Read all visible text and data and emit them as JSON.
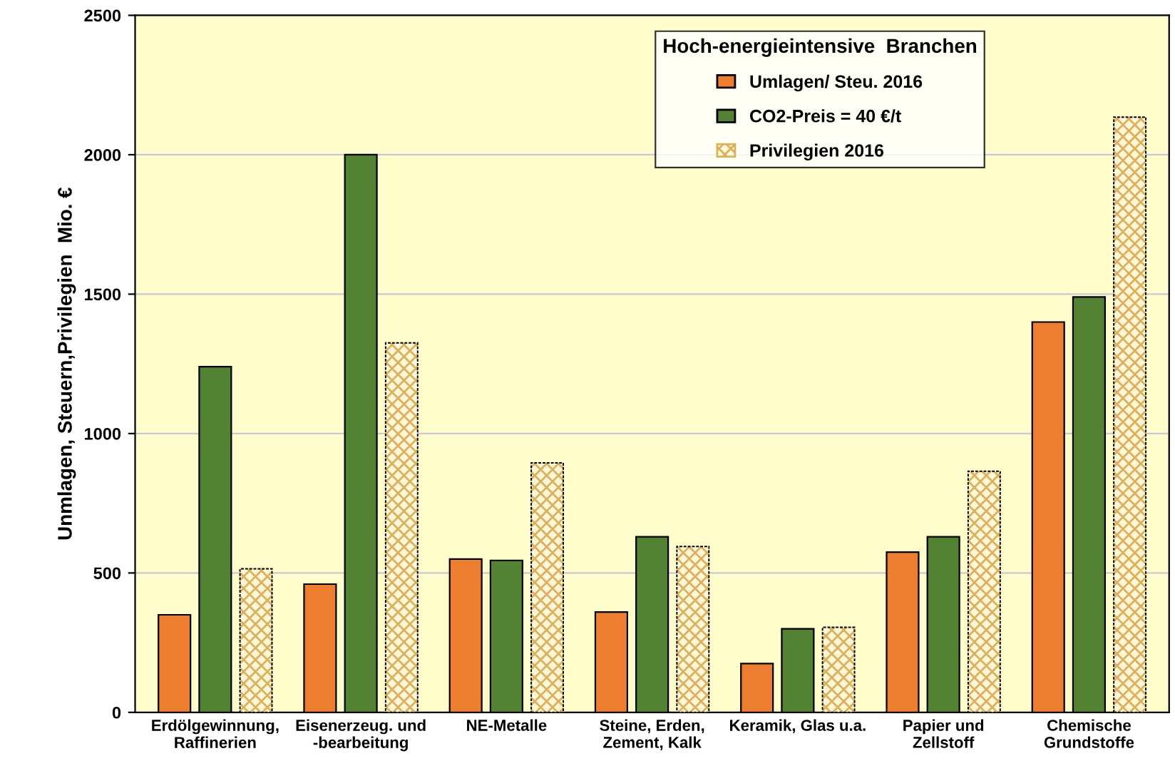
{
  "chart_data": {
    "type": "bar",
    "ylabel": "Unmlagen, Steuern,Privilegien  Mio. €",
    "legend_title": "Hoch-energieintensive  Branchen",
    "categories": [
      "Erdölgewinnung,\nRaffinerien",
      "Eisenerzeug. und\n-bearbeitung",
      "NE-Metalle",
      "Steine, Erden,\nZement, Kalk",
      "Keramik, Glas u.a.",
      "Papier und\nZellstoff",
      "Chemische\nGrundstoffe"
    ],
    "series": [
      {
        "name": "Umlagen/ Steu. 2016",
        "color": "#ed7d31",
        "values": [
          350,
          460,
          550,
          360,
          175,
          575,
          1400
        ]
      },
      {
        "name": "CO2-Preis = 40 €/t",
        "color": "#548235",
        "values": [
          1240,
          2000,
          545,
          630,
          300,
          630,
          1490
        ]
      },
      {
        "name": "Privilegien 2016",
        "color": "#d9b25c",
        "values": [
          515,
          1325,
          895,
          595,
          305,
          865,
          2135
        ]
      }
    ],
    "ylim": [
      0,
      2500
    ],
    "yticks": [
      0,
      500,
      1000,
      1500,
      2000,
      2500
    ],
    "grid": "y",
    "legend": "top right"
  }
}
